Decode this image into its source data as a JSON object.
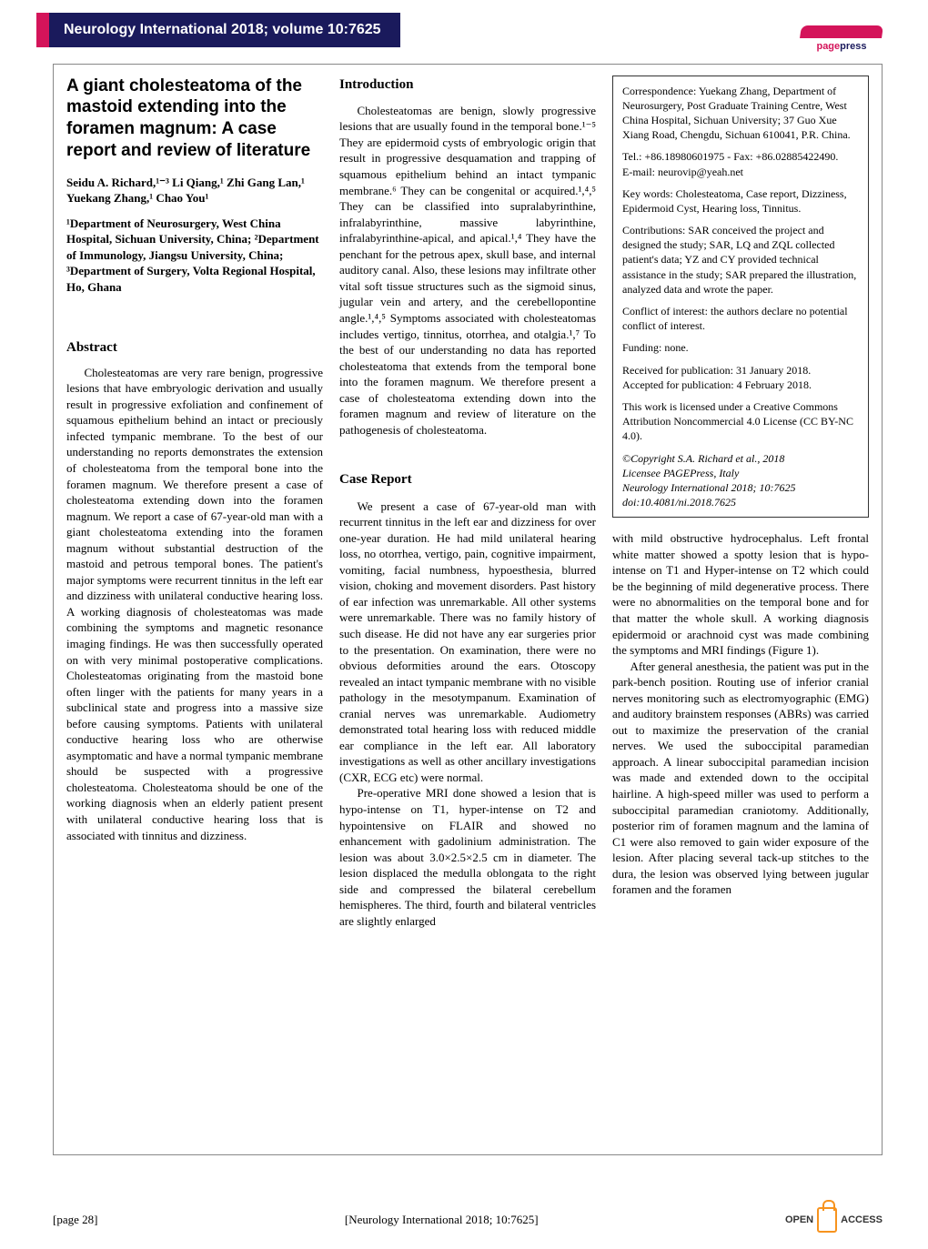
{
  "journal_header": "Neurology International 2018; volume 10:7625",
  "logo_line1": "page",
  "logo_line2": "press",
  "title": "A giant cholesteatoma of the mastoid extending into the foramen magnum: A case report and review of literature",
  "authors": "Seidu A. Richard,¹⁻³ Li Qiang,¹ Zhi Gang Lan,¹ Yuekang Zhang,¹ Chao You¹",
  "affiliation": "¹Department of Neurosurgery, West China Hospital, Sichuan University, China; ²Department of Immunology, Jiangsu University, China; ³Department of Surgery, Volta Regional Hospital, Ho, Ghana",
  "abstract_h": "Abstract",
  "abstract_text": "Cholesteatomas are very rare benign, progressive lesions that have embryologic derivation and usually result in progressive exfoliation and confinement of squamous epithelium behind an intact or preciously infected tympanic membrane. To the best of our understanding no reports demonstrates the extension of cholesteatoma from the temporal bone into the foramen magnum. We therefore present a case of cholesteatoma extending down into the foramen magnum. We report a case of 67-year-old man with a giant cholesteatoma extending into the foramen magnum without substantial destruction of the mastoid and petrous temporal bones. The patient's major symptoms were recurrent tinnitus in the left ear and dizziness with unilateral conductive hearing loss. A working diagnosis of cholesteatomas was made combining the symptoms and magnetic resonance imaging findings. He was then successfully operated on with very minimal postoperative complications. Cholesteatomas originating from the mastoid bone often linger with the patients for many years in a subclinical state and progress into a massive size before causing symptoms. Patients with unilateral conductive hearing loss who are otherwise asymptomatic and have a normal tympanic membrane should be suspected with a progressive cholesteatoma. Cholesteatoma should be one of the working diagnosis when an elderly patient present with unilateral conductive hearing loss that is associated with tinnitus and dizziness.",
  "intro_h": "Introduction",
  "intro_text": "Cholesteatomas are benign, slowly progressive lesions that are usually found in the temporal bone.¹⁻⁵ They are epidermoid cysts of embryologic origin that result in progressive desquamation and trapping of squamous epithelium behind an intact tympanic membrane.⁶ They can be congenital or acquired.¹,⁴,⁵ They can be classified into supralabyrinthine, infralabyrinthine, massive labyrinthine, infralabyrinthine-apical, and apical.¹,⁴ They have the penchant for the petrous apex, skull base, and internal auditory canal. Also, these lesions may infiltrate other vital soft tissue structures such as the sigmoid sinus, jugular vein and artery, and the cerebellopontine angle.¹,⁴,⁵ Symptoms associated with cholesteatomas includes vertigo, tinnitus, otorrhea, and otalgia.¹,⁷ To the best of our understanding no data has reported cholesteatoma that extends from the temporal bone into the foramen magnum. We therefore present a case of cholesteatoma extending down into the foramen magnum and review of literature on the pathogenesis of cholesteatoma.",
  "case_h": "Case Report",
  "case_text1": "We present a case of 67-year-old man with recurrent tinnitus in the left ear and dizziness for over one-year duration. He had mild unilateral hearing loss, no otorrhea, vertigo, pain, cognitive impairment, vomiting, facial numbness, hypoesthesia, blurred vision, choking and movement disorders. Past history of ear infection was unremarkable. All other systems were unremarkable. There was no family history of such disease. He did not have any ear surgeries prior to the presentation. On examination, there were no obvious deformities around the ears. Otoscopy revealed an intact tympanic membrane with no visible pathology in the mesotympanum. Examination of cranial nerves was unremarkable. Audiometry demonstrated total hearing loss with reduced middle ear compliance in the left ear. All laboratory investigations as well as other ancillary investigations (CXR, ECG etc) were normal.",
  "case_text2": "Pre-operative MRI done showed a lesion that is hypo-intense on T1, hyper-intense on T2 and hypointensive on FLAIR and showed no enhancement with gadolinium administration. The lesion was about 3.0×2.5×2.5 cm in diameter. The lesion displaced the medulla oblongata to the right side and compressed the bilateral cerebellum hemispheres. The third, fourth and bilateral ventricles are slightly enlarged",
  "box": {
    "corr": "Correspondence: Yuekang Zhang, Department of Neurosurgery, Post Graduate Training Centre, West China Hospital, Sichuan University; 37 Guo Xue Xiang Road, Chengdu, Sichuan 610041, P.R. China.",
    "tel": "Tel.: +86.18980601975 - Fax: +86.02885422490.",
    "email": "E-mail: neurovip@yeah.net",
    "kw": "Key words: Cholesteatoma, Case report, Dizziness, Epidermoid Cyst, Hearing loss, Tinnitus.",
    "contrib": "Contributions: SAR conceived the project and designed the study; SAR, LQ and ZQL collected patient's data; YZ and CY provided technical assistance in the study; SAR prepared the illustration, analyzed data and wrote the paper.",
    "conflict": "Conflict of interest: the authors declare no potential conflict of interest.",
    "funding": "Funding: none.",
    "received": "Received for publication: 31 January 2018.",
    "accepted": "Accepted for publication: 4 February 2018.",
    "license": "This work is licensed under a Creative Commons Attribution Noncommercial 4.0 License (CC BY-NC 4.0).",
    "copyright": "©Copyright S.A. Richard et al., 2018",
    "licensee": "Licensee PAGEPress, Italy",
    "ref": "Neurology International 2018; 10:7625",
    "doi": "doi:10.4081/ni.2018.7625"
  },
  "cont_text1": "with mild obstructive hydrocephalus. Left frontal white matter showed a spotty lesion that is hypo-intense on T1 and Hyper-intense on T2 which could be the beginning of mild degenerative process. There were no abnormalities on the temporal bone and for that matter the whole skull. A working diagnosis epidermoid or arachnoid cyst was made combining the symptoms and MRI findings (Figure 1).",
  "cont_text2": "After general anesthesia, the patient was put in the park-bench position. Routing use of inferior cranial nerves monitoring such as electromyographic (EMG) and auditory brainstem responses (ABRs) was carried out to maximize the preservation of the cranial nerves. We used the suboccipital paramedian approach. A linear suboccipital paramedian incision was made and extended down to the occipital hairline. A high-speed miller was used to perform a suboccipital paramedian craniotomy. Additionally, posterior rim of foramen magnum and the lamina of C1 were also removed to gain wider exposure of the lesion. After placing several tack-up stitches to the dura, the lesion was observed lying between jugular foramen and the foramen",
  "footer_left": "[page 28]",
  "footer_center": "[Neurology International 2018; 10:7625]",
  "oa_open": "OPEN",
  "oa_access": "ACCESS",
  "colors": {
    "header_bg": "#1a1a5c",
    "accent": "#d4145a",
    "orange": "#f7931e"
  }
}
